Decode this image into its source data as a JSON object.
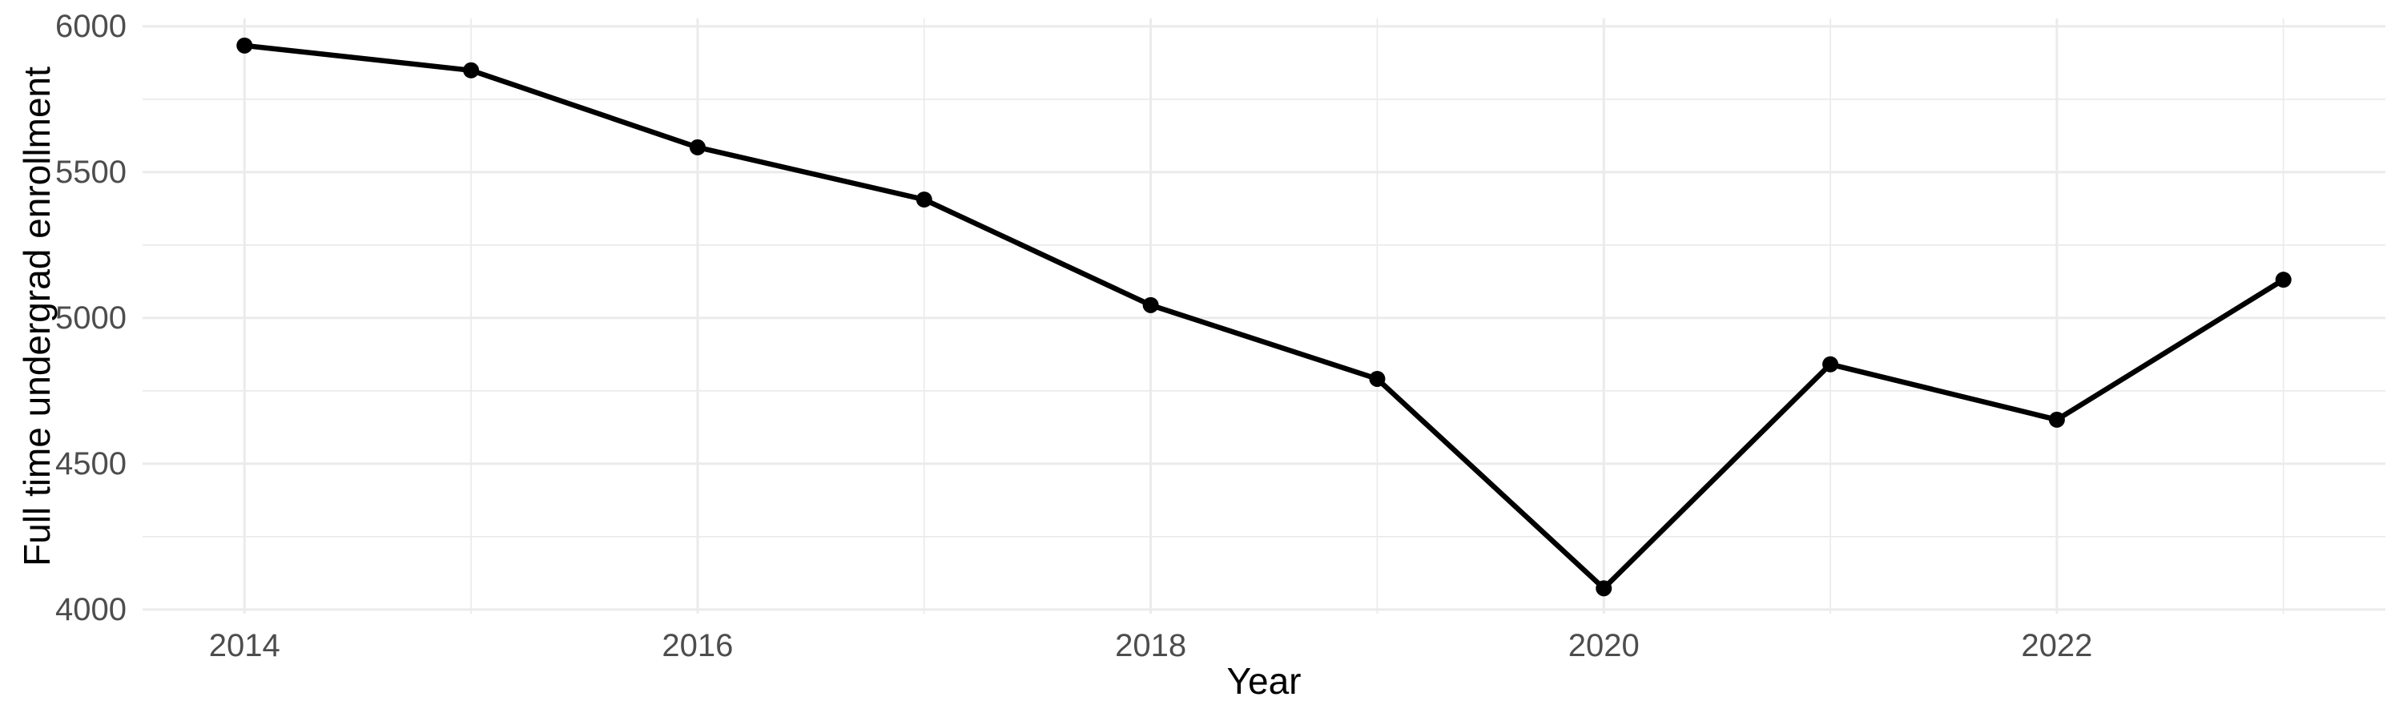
{
  "chart_data": {
    "type": "line",
    "title": "",
    "xlabel": "Year",
    "ylabel": "Full time undergrad enrollment",
    "x": [
      2014,
      2015,
      2016,
      2017,
      2018,
      2019,
      2020,
      2021,
      2022,
      2023
    ],
    "series": [
      {
        "name": "Full time undergrad enrollment",
        "values": [
          5934,
          5849,
          5585,
          5406,
          5044,
          4791,
          4073,
          4841,
          4651,
          5131
        ]
      }
    ],
    "x_major_ticks": [
      2014,
      2016,
      2018,
      2020,
      2022
    ],
    "x_minor_gridlines": [
      2015,
      2017,
      2019,
      2021,
      2023
    ],
    "y_major_ticks": [
      6000,
      5500,
      5000,
      4500,
      4000
    ],
    "y_minor_gridlines": [
      5750,
      5250,
      4750,
      4250
    ],
    "xlim": [
      2013.55,
      2023.45
    ],
    "ylim": [
      3986,
      6027
    ],
    "grid": "major-and-minor",
    "legend": false,
    "marker": "filled-circle",
    "colors": {
      "series": "#000000",
      "gridline": "#EBEBEB",
      "tick_label": "#4D4D4D",
      "axis_title": "#000000",
      "background": "#FFFFFF"
    }
  }
}
